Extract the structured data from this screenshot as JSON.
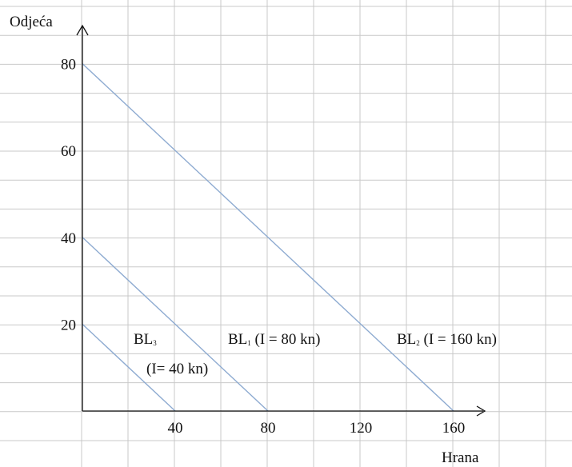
{
  "chart_data": {
    "type": "line",
    "title": "",
    "xlabel": "Hrana",
    "ylabel": "Odjeća",
    "xlim": [
      0,
      180
    ],
    "ylim": [
      0,
      90
    ],
    "grid": true,
    "x_ticks": [
      "40",
      "80",
      "120",
      "160"
    ],
    "y_ticks": [
      "20",
      "40",
      "60",
      "80"
    ],
    "series": [
      {
        "name": "BL2",
        "x": [
          0,
          160
        ],
        "y": [
          80,
          0
        ]
      },
      {
        "name": "BL1",
        "x": [
          0,
          80
        ],
        "y": [
          40,
          0
        ]
      },
      {
        "name": "BL3",
        "x": [
          0,
          40
        ],
        "y": [
          20,
          0
        ]
      }
    ],
    "annotations": {
      "bl3": {
        "main": "BL",
        "sub": "3"
      },
      "bl3_income": "(I= 40 kn)",
      "bl1": {
        "main": "BL",
        "sub": "1",
        "rest": " (I = 80 kn)"
      },
      "bl2": {
        "main": "BL",
        "sub": "2",
        "rest": " (I = 160 kn)"
      }
    },
    "colors": {
      "budget_line": "#8eabd1",
      "grid": "#c9c9c9",
      "axis": "#111111"
    }
  }
}
